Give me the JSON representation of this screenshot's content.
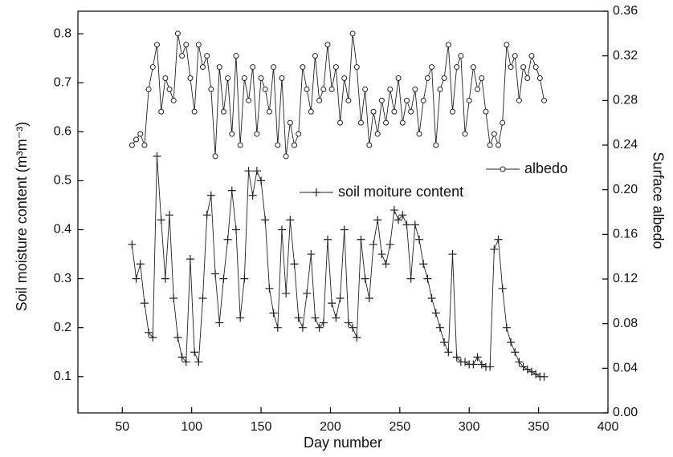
{
  "chart_data": {
    "type": "line",
    "xlabel": "Day number",
    "ylabel": "Soil moisture content (m³m⁻³)",
    "y2label": "Surface albedo",
    "xlim": [
      18,
      400
    ],
    "xticks": [
      50,
      100,
      150,
      200,
      250,
      300,
      350,
      400
    ],
    "ylim": [
      0.026,
      0.846
    ],
    "yticks": [
      0.1,
      0.2,
      0.3,
      0.4,
      0.5,
      0.6,
      0.7,
      0.8
    ],
    "y2lim": [
      0,
      0.36
    ],
    "y2ticks": [
      {
        "value": 0,
        "label": "0.00"
      },
      {
        "value": 0.04,
        "label": "0.04"
      },
      {
        "value": 0.08,
        "label": "0.08"
      },
      {
        "value": 0.12,
        "label": "0.12"
      },
      {
        "value": 0.16,
        "label": "0.16"
      },
      {
        "value": 0.2,
        "label": "0.20"
      },
      {
        "value": 0.24,
        "label": "0.24"
      },
      {
        "value": 0.28,
        "label": "0.28"
      },
      {
        "value": 0.32,
        "label": "0.32"
      },
      {
        "value": 0.36,
        "label": "0.36"
      }
    ],
    "legend": "upper right",
    "x": [
      57,
      60,
      63,
      66,
      69,
      72,
      75,
      78,
      81,
      84,
      87,
      90,
      93,
      96,
      99,
      102,
      105,
      108,
      111,
      114,
      117,
      120,
      123,
      126,
      129,
      132,
      135,
      138,
      141,
      144,
      147,
      150,
      153,
      156,
      159,
      162,
      165,
      168,
      171,
      174,
      177,
      180,
      183,
      186,
      189,
      192,
      195,
      198,
      201,
      204,
      207,
      210,
      213,
      216,
      219,
      222,
      225,
      228,
      231,
      234,
      237,
      240,
      243,
      246,
      249,
      252,
      255,
      258,
      261,
      264,
      267,
      270,
      273,
      276,
      279,
      282,
      285,
      288,
      291,
      294,
      297,
      300,
      303,
      306,
      309,
      312,
      315,
      318,
      321,
      324,
      327,
      330,
      333,
      336,
      339,
      342,
      345,
      348,
      351,
      354
    ],
    "series": [
      {
        "name": "albedo",
        "color": "#222222",
        "marker": "circle",
        "axis": "y2",
        "values": [
          0.24,
          0.245,
          0.25,
          0.24,
          0.29,
          0.31,
          0.33,
          0.27,
          0.3,
          0.29,
          0.28,
          0.34,
          0.32,
          0.33,
          0.3,
          0.27,
          0.33,
          0.31,
          0.32,
          0.29,
          0.23,
          0.31,
          0.27,
          0.3,
          0.25,
          0.32,
          0.24,
          0.3,
          0.28,
          0.31,
          0.25,
          0.3,
          0.29,
          0.27,
          0.31,
          0.24,
          0.3,
          0.23,
          0.26,
          0.24,
          0.25,
          0.31,
          0.29,
          0.27,
          0.32,
          0.28,
          0.29,
          0.33,
          0.29,
          0.31,
          0.26,
          0.3,
          0.28,
          0.34,
          0.31,
          0.26,
          0.29,
          0.24,
          0.27,
          0.25,
          0.28,
          0.26,
          0.29,
          0.27,
          0.3,
          0.26,
          0.28,
          0.27,
          0.29,
          0.25,
          0.28,
          0.3,
          0.31,
          0.24,
          0.29,
          0.3,
          0.33,
          0.27,
          0.31,
          0.32,
          0.25,
          0.28,
          0.31,
          0.29,
          0.3,
          0.27,
          0.24,
          0.25,
          0.24,
          0.26,
          0.33,
          0.31,
          0.32,
          0.28,
          0.31,
          0.3,
          0.32,
          0.31,
          0.3,
          0.28
        ]
      },
      {
        "name": "soil moiture content",
        "color": "#222222",
        "marker": "plus",
        "axis": "y",
        "values": [
          0.37,
          0.3,
          0.33,
          0.25,
          0.19,
          0.18,
          0.55,
          0.42,
          0.3,
          0.43,
          0.26,
          0.18,
          0.14,
          0.13,
          0.34,
          0.15,
          0.13,
          0.26,
          0.43,
          0.47,
          0.31,
          0.21,
          0.3,
          0.38,
          0.48,
          0.4,
          0.22,
          0.3,
          0.52,
          0.47,
          0.52,
          0.5,
          0.42,
          0.28,
          0.23,
          0.2,
          0.4,
          0.27,
          0.42,
          0.33,
          0.22,
          0.2,
          0.27,
          0.35,
          0.22,
          0.2,
          0.21,
          0.38,
          0.25,
          0.22,
          0.26,
          0.4,
          0.21,
          0.2,
          0.18,
          0.38,
          0.3,
          0.26,
          0.37,
          0.42,
          0.35,
          0.33,
          0.37,
          0.44,
          0.42,
          0.43,
          0.41,
          0.3,
          0.41,
          0.38,
          0.33,
          0.3,
          0.26,
          0.23,
          0.2,
          0.17,
          0.15,
          0.35,
          0.14,
          0.13,
          0.13,
          0.125,
          0.125,
          0.14,
          0.125,
          0.12,
          0.12,
          0.36,
          0.38,
          0.28,
          0.2,
          0.17,
          0.15,
          0.13,
          0.12,
          0.115,
          0.11,
          0.105,
          0.1,
          0.1
        ]
      }
    ]
  }
}
